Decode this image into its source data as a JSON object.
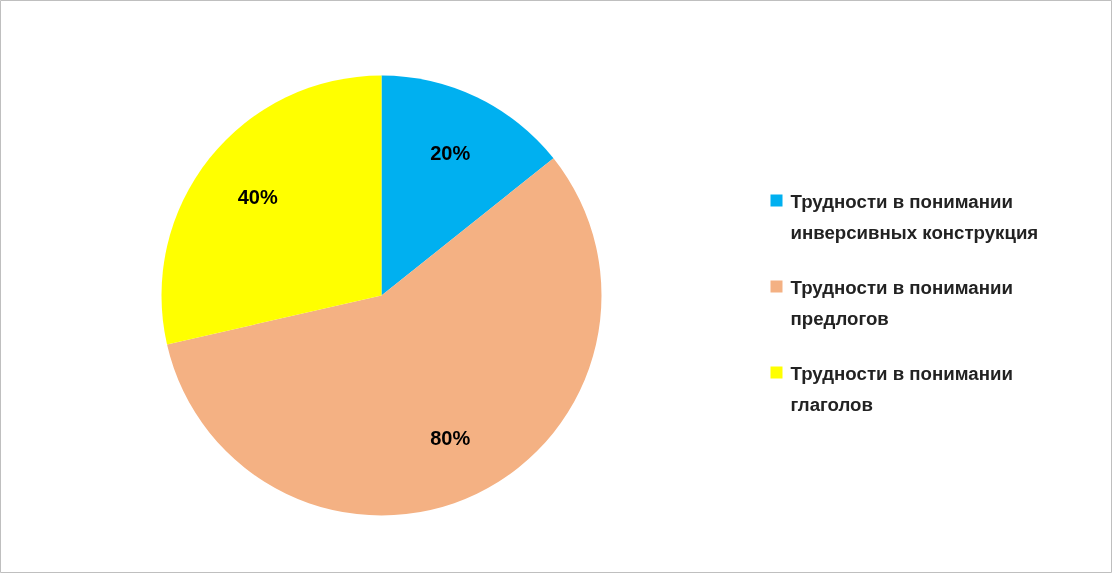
{
  "chart_data": {
    "type": "pie",
    "categories": [
      "Трудности в понимании инверсивных конструкция",
      "Трудности в понимании предлогов",
      "Трудности в понимании глаголов"
    ],
    "values": [
      20,
      80,
      40
    ],
    "colors": [
      "#00b0f0",
      "#f4b183",
      "#ffff00"
    ],
    "value_labels": [
      "20%",
      "80%",
      "40%"
    ],
    "legend": "right"
  }
}
